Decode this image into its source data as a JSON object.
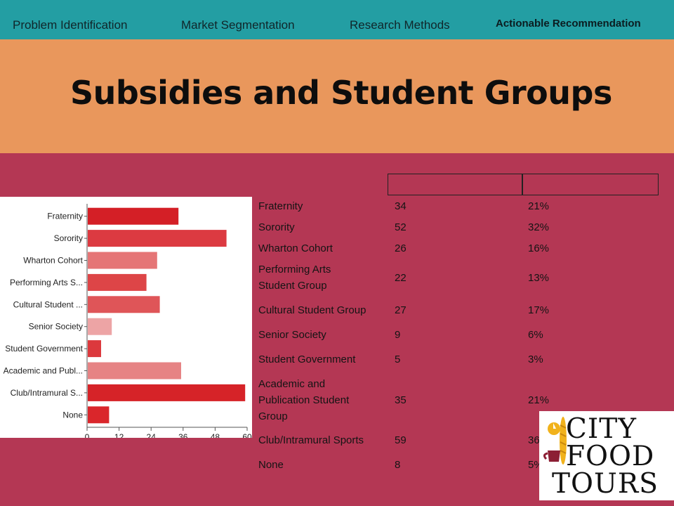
{
  "nav": {
    "items": [
      {
        "label": "Problem Identification"
      },
      {
        "label": "Market Segmentation"
      },
      {
        "label": "Research Methods"
      },
      {
        "label": "Actionable Recommendation"
      }
    ],
    "active_index": 3
  },
  "title": "Subsidies and Student Groups",
  "table": {
    "rows": [
      {
        "category": "Fraternity",
        "count": "34",
        "percent": "21%"
      },
      {
        "category": "Sorority",
        "count": "52",
        "percent": "32%"
      },
      {
        "category": "Wharton Cohort",
        "count": "26",
        "percent": "16%"
      },
      {
        "category": "Performing Arts Student Group",
        "count": "22",
        "percent": "13%"
      },
      {
        "category": "Cultural Student Group",
        "count": "27",
        "percent": "17%"
      },
      {
        "category": "Senior Society",
        "count": "9",
        "percent": "6%"
      },
      {
        "category": "Student Government",
        "count": "5",
        "percent": "3%"
      },
      {
        "category": "Academic and Publication Student Group",
        "count": "35",
        "percent": "21%"
      },
      {
        "category": "Club/Intramural Sports",
        "count": "59",
        "percent": "36%"
      },
      {
        "category": "None",
        "count": "8",
        "percent": "5%"
      }
    ]
  },
  "chart_data": {
    "type": "bar",
    "orientation": "horizontal",
    "categories": [
      "Fraternity",
      "Sorority",
      "Wharton Cohort",
      "Performing Arts S...",
      "Cultural Student ...",
      "Senior Society",
      "Student Government",
      "Academic and Publ...",
      "Club/Intramural S...",
      "None"
    ],
    "values": [
      34,
      52,
      26,
      22,
      27,
      9,
      5,
      35,
      59,
      8
    ],
    "bar_colors": [
      "#d41f26",
      "#dc3a41",
      "#e57576",
      "#dd4547",
      "#df5558",
      "#eda4a5",
      "#dc393d",
      "#e68384",
      "#d62328",
      "#da262b"
    ],
    "xticks": [
      "0",
      "12",
      "24",
      "36",
      "48",
      "60"
    ],
    "xlim": [
      0,
      60
    ],
    "grid": false
  },
  "logo": {
    "lines": [
      "CITY",
      "FOOD",
      "TOURS"
    ],
    "colors": {
      "gold": "#f1b21b",
      "maroon": "#8c1f34"
    }
  }
}
